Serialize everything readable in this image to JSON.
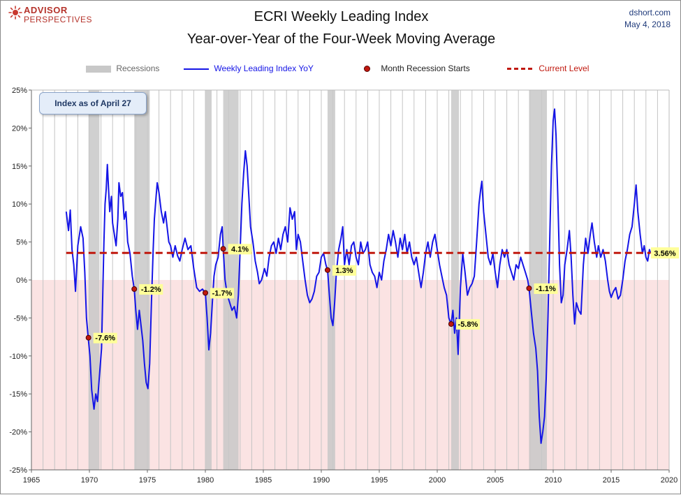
{
  "header": {
    "logo_line1": "ADVISOR",
    "logo_line2": "PERSPECTIVES",
    "title_line1": "ECRI Weekly Leading Index",
    "title_line2": "Year-over-Year of the Four-Week Moving Average",
    "source": "dshort.com",
    "date": "May 4, 2018"
  },
  "note": "Index as of April 27",
  "colors": {
    "series": "#1515e6",
    "recession": "#c8c8c8",
    "negative_band": "#fbe3e3",
    "marker": "#c0180e",
    "current_level": "#c0180e",
    "label_bg": "#ffff99"
  },
  "chart_data": {
    "type": "line",
    "title": "ECRI Weekly Leading Index Year-over-Year of the Four-Week Moving Average",
    "xlim": [
      1965,
      2020
    ],
    "ylim": [
      -25,
      25
    ],
    "x_ticks": [
      1965,
      1970,
      1975,
      1980,
      1985,
      1990,
      1995,
      2000,
      2005,
      2010,
      2015,
      2020
    ],
    "y_ticks": [
      "25%",
      "20%",
      "15%",
      "10%",
      "5%",
      "0%",
      "-5%",
      "-10%",
      "-15%",
      "-20%",
      "-25%"
    ],
    "grid": "vertical yearly lines",
    "legend": {
      "position": "top",
      "entries": [
        "Recessions",
        "Weekly Leading Index YoY",
        "Month Recession Starts",
        "Current Level"
      ]
    },
    "recessions": [
      [
        1969.92,
        1970.87
      ],
      [
        1973.87,
        1975.2
      ],
      [
        1980.0,
        1980.54
      ],
      [
        1981.54,
        1982.87
      ],
      [
        1990.54,
        1991.2
      ],
      [
        2001.2,
        2001.87
      ],
      [
        2007.92,
        2009.46
      ]
    ],
    "recession_starts": [
      {
        "x": 1969.92,
        "y": -7.6,
        "label": "-7.6%"
      },
      {
        "x": 1973.87,
        "y": -1.2,
        "label": "-1.2%"
      },
      {
        "x": 1980.0,
        "y": -1.7,
        "label": "-1.7%"
      },
      {
        "x": 1981.54,
        "y": 4.1,
        "label": "4.1%"
      },
      {
        "x": 1990.54,
        "y": 1.3,
        "label": "1.3%"
      },
      {
        "x": 2001.2,
        "y": -5.8,
        "label": "-5.8%"
      },
      {
        "x": 2007.92,
        "y": -1.1,
        "label": "-1.1%"
      }
    ],
    "current_level": {
      "value": 3.56,
      "label": "3.56%"
    },
    "series": [
      {
        "name": "Weekly Leading Index YoY",
        "points": [
          [
            1968.0,
            9.0
          ],
          [
            1968.2,
            6.5
          ],
          [
            1968.35,
            9.2
          ],
          [
            1968.5,
            4.0
          ],
          [
            1968.65,
            2.0
          ],
          [
            1968.8,
            -1.5
          ],
          [
            1969.0,
            4.5
          ],
          [
            1969.25,
            7.0
          ],
          [
            1969.45,
            5.5
          ],
          [
            1969.6,
            1.0
          ],
          [
            1969.75,
            -5.0
          ],
          [
            1969.9,
            -7.6
          ],
          [
            1970.05,
            -10.0
          ],
          [
            1970.2,
            -14.5
          ],
          [
            1970.4,
            -17.0
          ],
          [
            1970.55,
            -15.0
          ],
          [
            1970.7,
            -16.0
          ],
          [
            1970.9,
            -12.0
          ],
          [
            1971.05,
            -9.0
          ],
          [
            1971.15,
            -2.0
          ],
          [
            1971.25,
            5.0
          ],
          [
            1971.35,
            10.0
          ],
          [
            1971.45,
            12.0
          ],
          [
            1971.55,
            15.2
          ],
          [
            1971.65,
            12.0
          ],
          [
            1971.75,
            9.0
          ],
          [
            1971.9,
            11.0
          ],
          [
            1972.0,
            7.5
          ],
          [
            1972.15,
            6.0
          ],
          [
            1972.3,
            4.5
          ],
          [
            1972.45,
            8.0
          ],
          [
            1972.55,
            12.8
          ],
          [
            1972.7,
            11.0
          ],
          [
            1972.85,
            11.5
          ],
          [
            1973.0,
            8.0
          ],
          [
            1973.15,
            9.0
          ],
          [
            1973.3,
            5.0
          ],
          [
            1973.5,
            3.5
          ],
          [
            1973.7,
            0.5
          ],
          [
            1973.87,
            -1.2
          ],
          [
            1974.0,
            -4.0
          ],
          [
            1974.15,
            -6.5
          ],
          [
            1974.3,
            -4.0
          ],
          [
            1974.45,
            -6.0
          ],
          [
            1974.6,
            -8.0
          ],
          [
            1974.75,
            -11.0
          ],
          [
            1974.9,
            -13.5
          ],
          [
            1975.05,
            -14.3
          ],
          [
            1975.2,
            -11.0
          ],
          [
            1975.35,
            -3.0
          ],
          [
            1975.5,
            4.0
          ],
          [
            1975.6,
            8.0
          ],
          [
            1975.75,
            11.0
          ],
          [
            1975.85,
            12.8
          ],
          [
            1976.0,
            11.5
          ],
          [
            1976.2,
            9.0
          ],
          [
            1976.4,
            7.5
          ],
          [
            1976.55,
            9.0
          ],
          [
            1976.7,
            7.0
          ],
          [
            1976.85,
            5.0
          ],
          [
            1977.0,
            4.5
          ],
          [
            1977.2,
            3.0
          ],
          [
            1977.4,
            4.5
          ],
          [
            1977.6,
            3.2
          ],
          [
            1977.8,
            2.5
          ],
          [
            1978.0,
            4.0
          ],
          [
            1978.25,
            5.5
          ],
          [
            1978.5,
            4.0
          ],
          [
            1978.75,
            4.5
          ],
          [
            1979.0,
            1.5
          ],
          [
            1979.25,
            -1.0
          ],
          [
            1979.5,
            -1.5
          ],
          [
            1979.75,
            -1.2
          ],
          [
            1980.0,
            -1.7
          ],
          [
            1980.15,
            -5.0
          ],
          [
            1980.3,
            -9.2
          ],
          [
            1980.45,
            -7.0
          ],
          [
            1980.6,
            -3.0
          ],
          [
            1980.75,
            0.5
          ],
          [
            1980.9,
            2.0
          ],
          [
            1981.1,
            3.0
          ],
          [
            1981.3,
            6.0
          ],
          [
            1981.45,
            7.0
          ],
          [
            1981.54,
            4.1
          ],
          [
            1981.7,
            0.0
          ],
          [
            1981.9,
            -2.0
          ],
          [
            1982.1,
            -3.0
          ],
          [
            1982.3,
            -4.0
          ],
          [
            1982.5,
            -3.5
          ],
          [
            1982.7,
            -5.0
          ],
          [
            1982.85,
            -2.0
          ],
          [
            1983.0,
            4.0
          ],
          [
            1983.15,
            10.0
          ],
          [
            1983.3,
            14.0
          ],
          [
            1983.45,
            17.0
          ],
          [
            1983.6,
            15.0
          ],
          [
            1983.75,
            11.0
          ],
          [
            1983.9,
            7.0
          ],
          [
            1984.1,
            5.0
          ],
          [
            1984.3,
            2.5
          ],
          [
            1984.5,
            1.0
          ],
          [
            1984.65,
            -0.5
          ],
          [
            1984.85,
            0.0
          ],
          [
            1985.1,
            1.5
          ],
          [
            1985.3,
            0.5
          ],
          [
            1985.5,
            3.0
          ],
          [
            1985.7,
            4.5
          ],
          [
            1985.9,
            5.0
          ],
          [
            1986.1,
            3.5
          ],
          [
            1986.3,
            5.5
          ],
          [
            1986.5,
            4.0
          ],
          [
            1986.7,
            6.0
          ],
          [
            1986.9,
            7.0
          ],
          [
            1987.1,
            5.0
          ],
          [
            1987.3,
            9.5
          ],
          [
            1987.5,
            8.0
          ],
          [
            1987.7,
            9.0
          ],
          [
            1987.85,
            4.0
          ],
          [
            1988.0,
            6.0
          ],
          [
            1988.2,
            5.0
          ],
          [
            1988.4,
            2.5
          ],
          [
            1988.6,
            0.0
          ],
          [
            1988.8,
            -2.0
          ],
          [
            1989.0,
            -3.0
          ],
          [
            1989.2,
            -2.5
          ],
          [
            1989.4,
            -1.5
          ],
          [
            1989.6,
            0.5
          ],
          [
            1989.8,
            1.0
          ],
          [
            1990.0,
            3.0
          ],
          [
            1990.2,
            3.5
          ],
          [
            1990.4,
            2.0
          ],
          [
            1990.54,
            1.3
          ],
          [
            1990.7,
            -2.0
          ],
          [
            1990.85,
            -5.0
          ],
          [
            1991.0,
            -6.0
          ],
          [
            1991.15,
            -3.0
          ],
          [
            1991.3,
            1.0
          ],
          [
            1991.5,
            4.0
          ],
          [
            1991.7,
            5.5
          ],
          [
            1991.85,
            7.0
          ],
          [
            1992.0,
            2.0
          ],
          [
            1992.2,
            4.0
          ],
          [
            1992.4,
            2.0
          ],
          [
            1992.6,
            4.5
          ],
          [
            1992.8,
            5.0
          ],
          [
            1993.0,
            3.0
          ],
          [
            1993.2,
            2.0
          ],
          [
            1993.4,
            5.0
          ],
          [
            1993.6,
            3.5
          ],
          [
            1993.8,
            4.0
          ],
          [
            1994.0,
            5.0
          ],
          [
            1994.2,
            2.0
          ],
          [
            1994.4,
            1.0
          ],
          [
            1994.6,
            0.5
          ],
          [
            1994.8,
            -1.0
          ],
          [
            1995.0,
            1.0
          ],
          [
            1995.2,
            0.0
          ],
          [
            1995.4,
            2.5
          ],
          [
            1995.6,
            4.0
          ],
          [
            1995.8,
            6.0
          ],
          [
            1996.0,
            4.5
          ],
          [
            1996.2,
            6.5
          ],
          [
            1996.4,
            5.0
          ],
          [
            1996.6,
            3.0
          ],
          [
            1996.8,
            5.5
          ],
          [
            1997.0,
            4.0
          ],
          [
            1997.2,
            6.0
          ],
          [
            1997.4,
            3.5
          ],
          [
            1997.6,
            5.0
          ],
          [
            1997.8,
            3.0
          ],
          [
            1998.0,
            2.0
          ],
          [
            1998.2,
            3.0
          ],
          [
            1998.4,
            1.0
          ],
          [
            1998.6,
            -1.0
          ],
          [
            1998.8,
            1.0
          ],
          [
            1999.0,
            3.5
          ],
          [
            1999.2,
            5.0
          ],
          [
            1999.4,
            3.0
          ],
          [
            1999.6,
            5.0
          ],
          [
            1999.8,
            6.0
          ],
          [
            2000.0,
            4.0
          ],
          [
            2000.2,
            2.0
          ],
          [
            2000.4,
            0.5
          ],
          [
            2000.6,
            -1.0
          ],
          [
            2000.8,
            -2.0
          ],
          [
            2001.0,
            -5.0
          ],
          [
            2001.2,
            -5.8
          ],
          [
            2001.35,
            -4.0
          ],
          [
            2001.5,
            -7.0
          ],
          [
            2001.65,
            -5.0
          ],
          [
            2001.8,
            -9.8
          ],
          [
            2002.0,
            -1.0
          ],
          [
            2002.2,
            3.5
          ],
          [
            2002.4,
            1.0
          ],
          [
            2002.6,
            -2.0
          ],
          [
            2002.8,
            -1.0
          ],
          [
            2003.0,
            -0.5
          ],
          [
            2003.2,
            0.5
          ],
          [
            2003.4,
            5.0
          ],
          [
            2003.6,
            10.0
          ],
          [
            2003.75,
            12.0
          ],
          [
            2003.85,
            13.0
          ],
          [
            2004.0,
            9.0
          ],
          [
            2004.2,
            6.0
          ],
          [
            2004.4,
            3.0
          ],
          [
            2004.6,
            2.0
          ],
          [
            2004.8,
            3.5
          ],
          [
            2005.0,
            1.0
          ],
          [
            2005.2,
            -1.0
          ],
          [
            2005.4,
            2.0
          ],
          [
            2005.6,
            4.0
          ],
          [
            2005.8,
            3.0
          ],
          [
            2006.0,
            4.0
          ],
          [
            2006.2,
            2.0
          ],
          [
            2006.4,
            1.0
          ],
          [
            2006.6,
            0.0
          ],
          [
            2006.8,
            2.0
          ],
          [
            2007.0,
            1.5
          ],
          [
            2007.2,
            3.0
          ],
          [
            2007.4,
            2.0
          ],
          [
            2007.6,
            1.0
          ],
          [
            2007.8,
            0.0
          ],
          [
            2007.92,
            -1.1
          ],
          [
            2008.1,
            -4.0
          ],
          [
            2008.3,
            -7.0
          ],
          [
            2008.5,
            -9.0
          ],
          [
            2008.65,
            -12.0
          ],
          [
            2008.8,
            -18.0
          ],
          [
            2008.95,
            -21.5
          ],
          [
            2009.1,
            -20.0
          ],
          [
            2009.25,
            -18.0
          ],
          [
            2009.4,
            -13.0
          ],
          [
            2009.55,
            -5.0
          ],
          [
            2009.7,
            5.0
          ],
          [
            2009.85,
            15.0
          ],
          [
            2010.0,
            21.0
          ],
          [
            2010.12,
            22.5
          ],
          [
            2010.25,
            19.0
          ],
          [
            2010.4,
            11.0
          ],
          [
            2010.55,
            2.0
          ],
          [
            2010.7,
            -3.0
          ],
          [
            2010.85,
            -2.0
          ],
          [
            2011.0,
            2.0
          ],
          [
            2011.2,
            4.0
          ],
          [
            2011.4,
            6.5
          ],
          [
            2011.55,
            3.0
          ],
          [
            2011.7,
            -2.0
          ],
          [
            2011.85,
            -5.8
          ],
          [
            2012.0,
            -3.0
          ],
          [
            2012.2,
            -4.0
          ],
          [
            2012.4,
            -4.5
          ],
          [
            2012.6,
            2.0
          ],
          [
            2012.8,
            5.5
          ],
          [
            2013.0,
            3.5
          ],
          [
            2013.2,
            6.0
          ],
          [
            2013.35,
            7.5
          ],
          [
            2013.55,
            5.0
          ],
          [
            2013.75,
            3.0
          ],
          [
            2013.9,
            4.5
          ],
          [
            2014.1,
            3.0
          ],
          [
            2014.3,
            4.0
          ],
          [
            2014.5,
            2.5
          ],
          [
            2014.7,
            0.0
          ],
          [
            2014.85,
            -1.5
          ],
          [
            2015.0,
            -2.3
          ],
          [
            2015.2,
            -1.5
          ],
          [
            2015.4,
            -1.0
          ],
          [
            2015.6,
            -2.5
          ],
          [
            2015.8,
            -2.0
          ],
          [
            2016.0,
            0.0
          ],
          [
            2016.2,
            2.5
          ],
          [
            2016.4,
            4.0
          ],
          [
            2016.6,
            6.0
          ],
          [
            2016.8,
            7.0
          ],
          [
            2017.0,
            10.0
          ],
          [
            2017.15,
            12.5
          ],
          [
            2017.3,
            9.0
          ],
          [
            2017.5,
            6.0
          ],
          [
            2017.7,
            3.5
          ],
          [
            2017.85,
            4.5
          ],
          [
            2018.0,
            3.0
          ],
          [
            2018.15,
            2.5
          ],
          [
            2018.3,
            4.0
          ],
          [
            2018.4,
            3.56
          ]
        ]
      }
    ]
  }
}
